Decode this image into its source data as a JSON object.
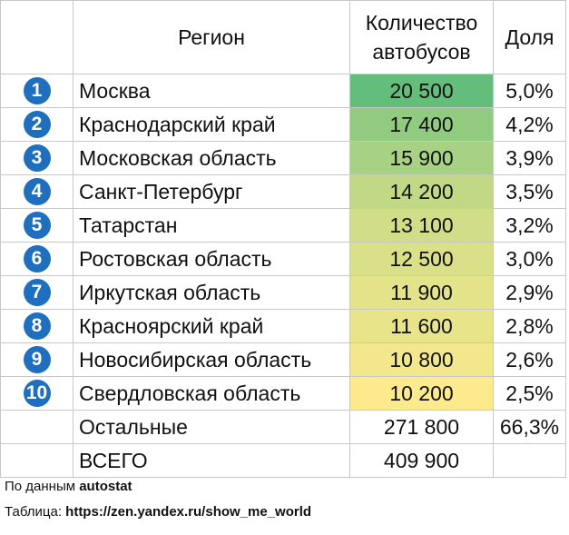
{
  "header": {
    "region": "Регион",
    "count": "Количество автобусов",
    "share": "Доля"
  },
  "color_scale": [
    "#fcea8c",
    "#63be7b"
  ],
  "rows": [
    {
      "rank": "1",
      "region": "Москва",
      "count": "20 500",
      "share": "5,0%"
    },
    {
      "rank": "2",
      "region": "Краснодарский край",
      "count": "17 400",
      "share": "4,2%"
    },
    {
      "rank": "3",
      "region": "Московская область",
      "count": "15 900",
      "share": "3,9%"
    },
    {
      "rank": "4",
      "region": "Санкт-Петербург",
      "count": "14 200",
      "share": "3,5%"
    },
    {
      "rank": "5",
      "region": "Татарстан",
      "count": "13 100",
      "share": "3,2%"
    },
    {
      "rank": "6",
      "region": "Ростовская область",
      "count": "12 500",
      "share": "3,0%"
    },
    {
      "rank": "7",
      "region": "Иркутская область",
      "count": "11 900",
      "share": "2,9%"
    },
    {
      "rank": "8",
      "region": "Красноярский край",
      "count": "11 600",
      "share": "2,8%"
    },
    {
      "rank": "9",
      "region": "Новосибирская область",
      "count": "10 800",
      "share": "2,6%"
    },
    {
      "rank": "10",
      "region": "Свердловская область",
      "count": "10 200",
      "share": "2,5%"
    }
  ],
  "others": {
    "region": "Остальные",
    "count": "271 800",
    "share": "66,3%"
  },
  "total": {
    "region": "ВСЕГО",
    "count": "409 900"
  },
  "footer": {
    "source_prefix": "По данным",
    "source": "autostat",
    "table_prefix": "Таблица:",
    "table_url": "https://zen.yandex.ru/show_me_world"
  }
}
